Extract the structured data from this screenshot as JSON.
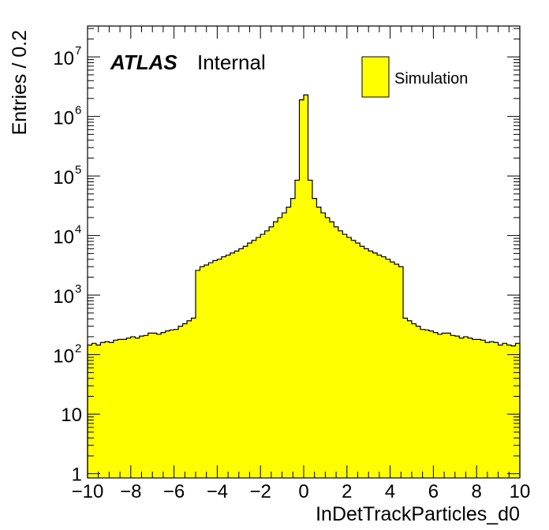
{
  "chart_data": {
    "type": "histogram",
    "atlas_label": "ATLAS",
    "atlas_status": "Internal",
    "xlabel": "InDetTrackParticles_d0",
    "ylabel": "Entries / 0.2",
    "xlim": [
      -10,
      10
    ],
    "ylim": [
      0.85,
      33000000.0
    ],
    "yscale": "log",
    "bin_width": 0.2,
    "fill_color": "#ffff00",
    "line_color": "#000000",
    "legend_position": "top-right",
    "x_ticks": [
      -10,
      -8,
      -6,
      -4,
      -2,
      0,
      2,
      4,
      6,
      8,
      10
    ],
    "x_tick_labels": [
      "−10",
      "−8",
      "−6",
      "−4",
      "−2",
      "0",
      "2",
      "4",
      "6",
      "8",
      "10"
    ],
    "y_ticks": [
      1,
      10,
      100,
      1000,
      10000,
      100000,
      1000000,
      10000000
    ],
    "y_tick_labels": [
      {
        "base": "1",
        "exp": ""
      },
      {
        "base": "10",
        "exp": ""
      },
      {
        "base": "10",
        "exp": "2"
      },
      {
        "base": "10",
        "exp": "3"
      },
      {
        "base": "10",
        "exp": "4"
      },
      {
        "base": "10",
        "exp": "5"
      },
      {
        "base": "10",
        "exp": "6"
      },
      {
        "base": "10",
        "exp": "7"
      }
    ],
    "series": [
      {
        "name": "Simulation",
        "bin_low_edges": [
          -10.0,
          -9.8,
          -9.6,
          -9.4,
          -9.2,
          -9.0,
          -8.8,
          -8.6,
          -8.4,
          -8.2,
          -8.0,
          -7.8,
          -7.6,
          -7.4,
          -7.2,
          -7.0,
          -6.8,
          -6.6,
          -6.4,
          -6.2,
          -6.0,
          -5.8,
          -5.6,
          -5.4,
          -5.2,
          -5.0,
          -4.8,
          -4.6,
          -4.4,
          -4.2,
          -4.0,
          -3.8,
          -3.6,
          -3.4,
          -3.2,
          -3.0,
          -2.8,
          -2.6,
          -2.4,
          -2.2,
          -2.0,
          -1.8,
          -1.6,
          -1.4,
          -1.2,
          -1.0,
          -0.8,
          -0.6,
          -0.4,
          -0.2,
          0.0,
          0.2,
          0.4,
          0.6,
          0.8,
          1.0,
          1.2,
          1.4,
          1.6,
          1.8,
          2.0,
          2.2,
          2.4,
          2.6,
          2.8,
          3.0,
          3.2,
          3.4,
          3.6,
          3.8,
          4.0,
          4.2,
          4.4,
          4.6,
          4.8,
          5.0,
          5.2,
          5.4,
          5.6,
          5.8,
          6.0,
          6.2,
          6.4,
          6.6,
          6.8,
          7.0,
          7.2,
          7.4,
          7.6,
          7.8,
          8.0,
          8.2,
          8.4,
          8.6,
          8.8,
          9.0,
          9.2,
          9.4,
          9.6,
          9.8
        ],
        "values": [
          145,
          155,
          145,
          160,
          165,
          160,
          175,
          180,
          180,
          190,
          200,
          190,
          205,
          210,
          230,
          230,
          220,
          235,
          250,
          260,
          265,
          300,
          330,
          370,
          410,
          2600,
          3000,
          3200,
          3500,
          3800,
          4000,
          4400,
          4700,
          5100,
          5500,
          6000,
          6600,
          7500,
          8300,
          9300,
          10500,
          12000,
          14000,
          17000,
          20000,
          24000,
          30000,
          42000,
          85000,
          1900000,
          2300000,
          85000,
          42000,
          30000,
          24000,
          20000,
          17000,
          14000,
          12000,
          10500,
          9300,
          8300,
          7500,
          6600,
          6000,
          5500,
          5100,
          4700,
          4400,
          4000,
          3600,
          3300,
          3000,
          410,
          370,
          330,
          300,
          265,
          260,
          250,
          235,
          220,
          230,
          230,
          210,
          205,
          190,
          200,
          190,
          180,
          180,
          175,
          160,
          165,
          160,
          145,
          155,
          145,
          140,
          155
        ]
      }
    ]
  }
}
